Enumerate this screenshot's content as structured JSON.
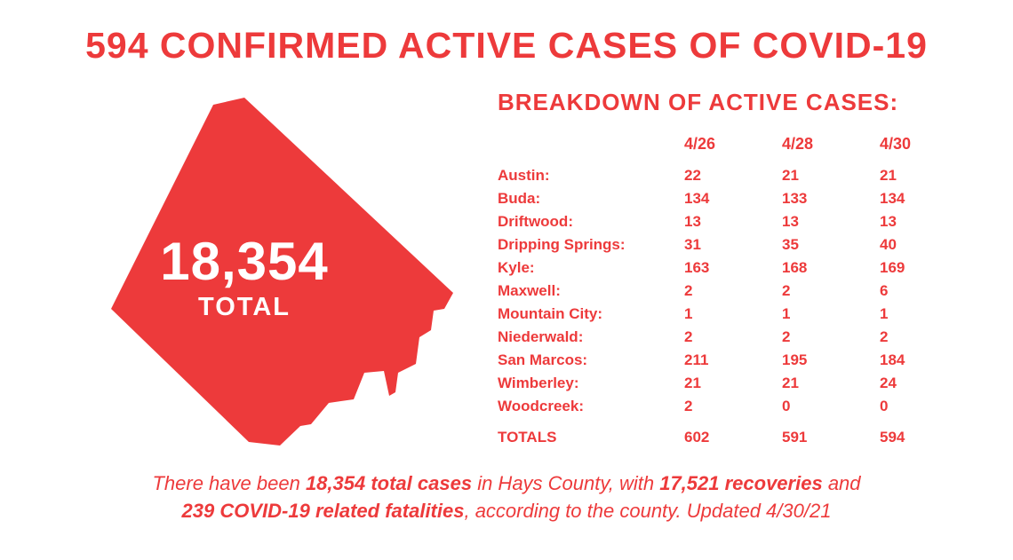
{
  "headline": "594 CONFIRMED ACTIVE CASES OF COVID-19",
  "county_shape": {
    "fill_color": "#ed3a3b",
    "total_number": "18,354",
    "total_label": "TOTAL"
  },
  "breakdown": {
    "title": "BREAKDOWN OF ACTIVE CASES:",
    "date_columns": [
      "4/26",
      "4/28",
      "4/30"
    ],
    "rows": [
      {
        "city": "Austin:",
        "vals": [
          "22",
          "21",
          "21"
        ]
      },
      {
        "city": "Buda:",
        "vals": [
          "134",
          "133",
          "134"
        ]
      },
      {
        "city": "Driftwood:",
        "vals": [
          "13",
          "13",
          "13"
        ]
      },
      {
        "city": "Dripping Springs:",
        "vals": [
          "31",
          "35",
          "40"
        ]
      },
      {
        "city": "Kyle:",
        "vals": [
          "163",
          "168",
          "169"
        ]
      },
      {
        "city": "Maxwell:",
        "vals": [
          "2",
          "2",
          "6"
        ]
      },
      {
        "city": "Mountain City:",
        "vals": [
          "1",
          "1",
          "1"
        ]
      },
      {
        "city": "Niederwald:",
        "vals": [
          "2",
          "2",
          "2"
        ]
      },
      {
        "city": "San Marcos:",
        "vals": [
          "211",
          "195",
          "184"
        ]
      },
      {
        "city": "Wimberley:",
        "vals": [
          "21",
          "21",
          "24"
        ]
      },
      {
        "city": "Woodcreek:",
        "vals": [
          "2",
          "0",
          "0"
        ]
      }
    ],
    "totals": {
      "label": "TOTALS",
      "vals": [
        "602",
        "591",
        "594"
      ]
    }
  },
  "footer": {
    "p1": "There have been ",
    "b1": "18,354 total cases",
    "p2": " in Hays County, with ",
    "b2": "17,521 recoveries",
    "p3": " and ",
    "b3": "239 COVID-19 related fatalities",
    "p4": ", according to the county. Updated 4/30/21"
  },
  "colors": {
    "primary": "#ed3a3b",
    "background": "#ffffff",
    "overlay_text": "#ffffff"
  }
}
